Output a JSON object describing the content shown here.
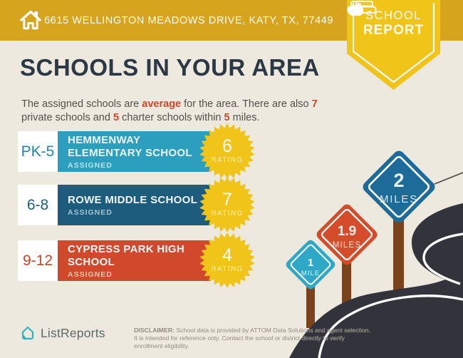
{
  "header": {
    "address": "6615 WELLINGTON MEADOWS DRIVE, KATY, TX, 77449"
  },
  "badge": {
    "line1": "SCHOOL",
    "line2": "REPORT"
  },
  "main": {
    "title": "SCHOOLS IN YOUR AREA",
    "intro": {
      "t1": "The assigned schools are ",
      "h1": "average",
      "t2": " for the area. There are also ",
      "h2": "7",
      "t3": " private schools and ",
      "h3": "5",
      "t4": " charter schools within ",
      "h4": "5",
      "t5": " miles."
    }
  },
  "schools": [
    {
      "grades": "PK-5",
      "name": [
        "HEMMENWAY",
        "ELEMENTARY SCHOOL"
      ],
      "status": "ASSIGNED",
      "rating": "6",
      "rating_label": "RATING",
      "bar_color": "#2C9FBE"
    },
    {
      "grades": "6-8",
      "name": [
        "ROWE MIDDLE SCHOOL"
      ],
      "status": "ASSIGNED",
      "rating": "7",
      "rating_label": "RATING",
      "bar_color": "#1D5C7D"
    },
    {
      "grades": "9-12",
      "name": [
        "CYPRESS PARK HIGH",
        "SCHOOL"
      ],
      "status": "ASSIGNED",
      "rating": "4",
      "rating_label": "RATING",
      "bar_color": "#D0492B"
    }
  ],
  "signs": [
    {
      "value": "1",
      "unit": "MILE",
      "color": "#2FA7C7"
    },
    {
      "value": "1.9",
      "unit": "MILES",
      "color": "#D54C2A"
    },
    {
      "value": "2",
      "unit": "MILES",
      "color": "#1D6B99"
    }
  ],
  "footer": {
    "brand": "ListReports",
    "disclaimer_label": "DISCLAIMER:",
    "disclaimer_text": " School data is provided by ATTOM Data Solutions and agent selection. It is intended for reference only. Contact the school or district directly to verify enrollment eligibility."
  },
  "colors": {
    "header_gold": "#D7A41E",
    "badge_yellow": "#F0C419",
    "starburst_yellow": "#F0C419",
    "accent_orange": "#D0482A",
    "background_cream": "#EDE9DF",
    "road_charcoal": "#32333B",
    "post_brown": "#7B431C",
    "title_text": "#2C3844"
  }
}
